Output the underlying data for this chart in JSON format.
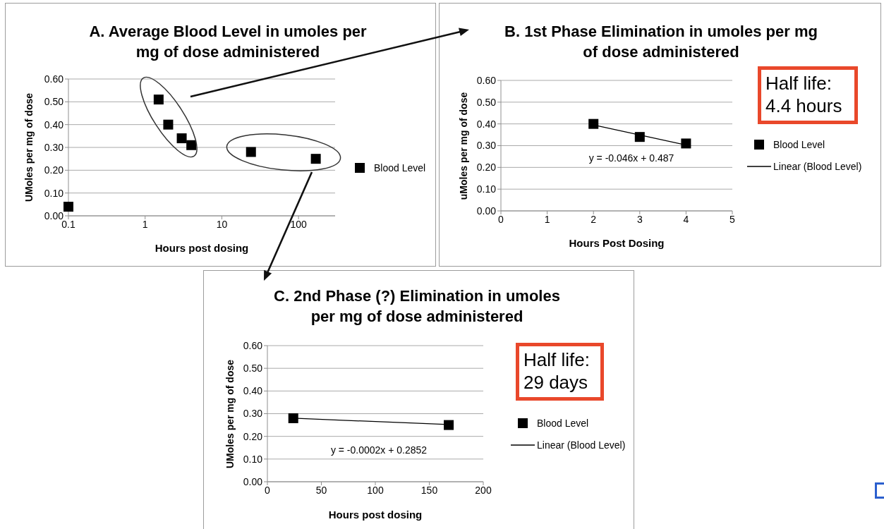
{
  "chart_data": [
    {
      "type": "scatter",
      "title": "A. Average Blood Level in umoles per mg of dose administered",
      "xlabel": "Hours post dosing",
      "ylabel": "UMoles per mg of dose",
      "x": [
        0.1,
        1.5,
        2,
        3,
        4,
        24,
        168
      ],
      "series": [
        {
          "name": "Blood Level",
          "color": "#000000",
          "values": [
            0.04,
            0.51,
            0.4,
            0.34,
            0.31,
            0.28,
            0.25
          ]
        }
      ],
      "log": "x",
      "xlim": [
        0.1,
        300
      ],
      "xticks": [
        0.1,
        1,
        10,
        100
      ],
      "ylim": [
        0,
        0.6
      ],
      "yticks": [
        {
          "value": 0,
          "label": "0.00"
        },
        {
          "value": 0.1,
          "label": "0.10"
        },
        {
          "value": 0.2,
          "label": "0.20"
        },
        {
          "value": 0.3,
          "label": "0.30"
        },
        {
          "value": 0.4,
          "label": "0.40"
        },
        {
          "value": 0.5,
          "label": "0.50"
        },
        {
          "value": 0.6,
          "label": "0.60"
        }
      ],
      "grid": "y",
      "legend": "right",
      "marker": "square"
    },
    {
      "type": "scatter",
      "title": "B. 1st Phase Elimination in umoles per mg of dose administered",
      "xlabel": "Hours Post Dosing",
      "ylabel": "uMoles per mg of dose",
      "x": [
        2,
        3,
        4
      ],
      "series": [
        {
          "name": "Blood Level",
          "color": "#000000",
          "values": [
            0.4,
            0.34,
            0.31
          ]
        },
        {
          "name": "Linear (Blood Level)",
          "type": "line",
          "marker": "none",
          "color": "#000000",
          "x": [
            2,
            4
          ],
          "values": [
            0.395,
            0.303
          ]
        }
      ],
      "xlim": [
        0,
        5
      ],
      "xticks": [
        0,
        1,
        2,
        3,
        4,
        5
      ],
      "ylim": [
        0,
        0.6
      ],
      "yticks": [
        {
          "value": 0,
          "label": "0.00"
        },
        {
          "value": 0.1,
          "label": "0.10"
        },
        {
          "value": 0.2,
          "label": "0.20"
        },
        {
          "value": 0.3,
          "label": "0.30"
        },
        {
          "value": 0.4,
          "label": "0.40"
        },
        {
          "value": 0.5,
          "label": "0.50"
        },
        {
          "value": 0.6,
          "label": "0.60"
        }
      ],
      "grid": "y",
      "legend": "right",
      "marker": "square",
      "annotations": [
        "y = -0.046x + 0.487",
        "Half life: 4.4 hours"
      ]
    },
    {
      "type": "scatter",
      "title": "C. 2nd Phase (?) Elimination in umoles per mg of dose administered",
      "xlabel": "Hours post dosing",
      "ylabel": "UMoles per mg of dose",
      "x": [
        24,
        168
      ],
      "series": [
        {
          "name": "Blood Level",
          "color": "#000000",
          "values": [
            0.28,
            0.25
          ]
        },
        {
          "name": "Linear (Blood Level)",
          "type": "line",
          "marker": "none",
          "color": "#000000",
          "x": [
            24,
            168
          ],
          "values": [
            0.28,
            0.252
          ]
        }
      ],
      "xlim": [
        0,
        200
      ],
      "xticks": [
        0,
        50,
        100,
        150,
        200
      ],
      "ylim": [
        0,
        0.6
      ],
      "yticks": [
        {
          "value": 0,
          "label": "0.00"
        },
        {
          "value": 0.1,
          "label": "0.10"
        },
        {
          "value": 0.2,
          "label": "0.20"
        },
        {
          "value": 0.3,
          "label": "0.30"
        },
        {
          "value": 0.4,
          "label": "0.40"
        },
        {
          "value": 0.5,
          "label": "0.50"
        },
        {
          "value": 0.6,
          "label": "0.60"
        }
      ],
      "grid": "y",
      "legend": "right",
      "marker": "square",
      "annotations": [
        "y = -0.0002x + 0.2852",
        "Half life: 29 days"
      ]
    }
  ]
}
